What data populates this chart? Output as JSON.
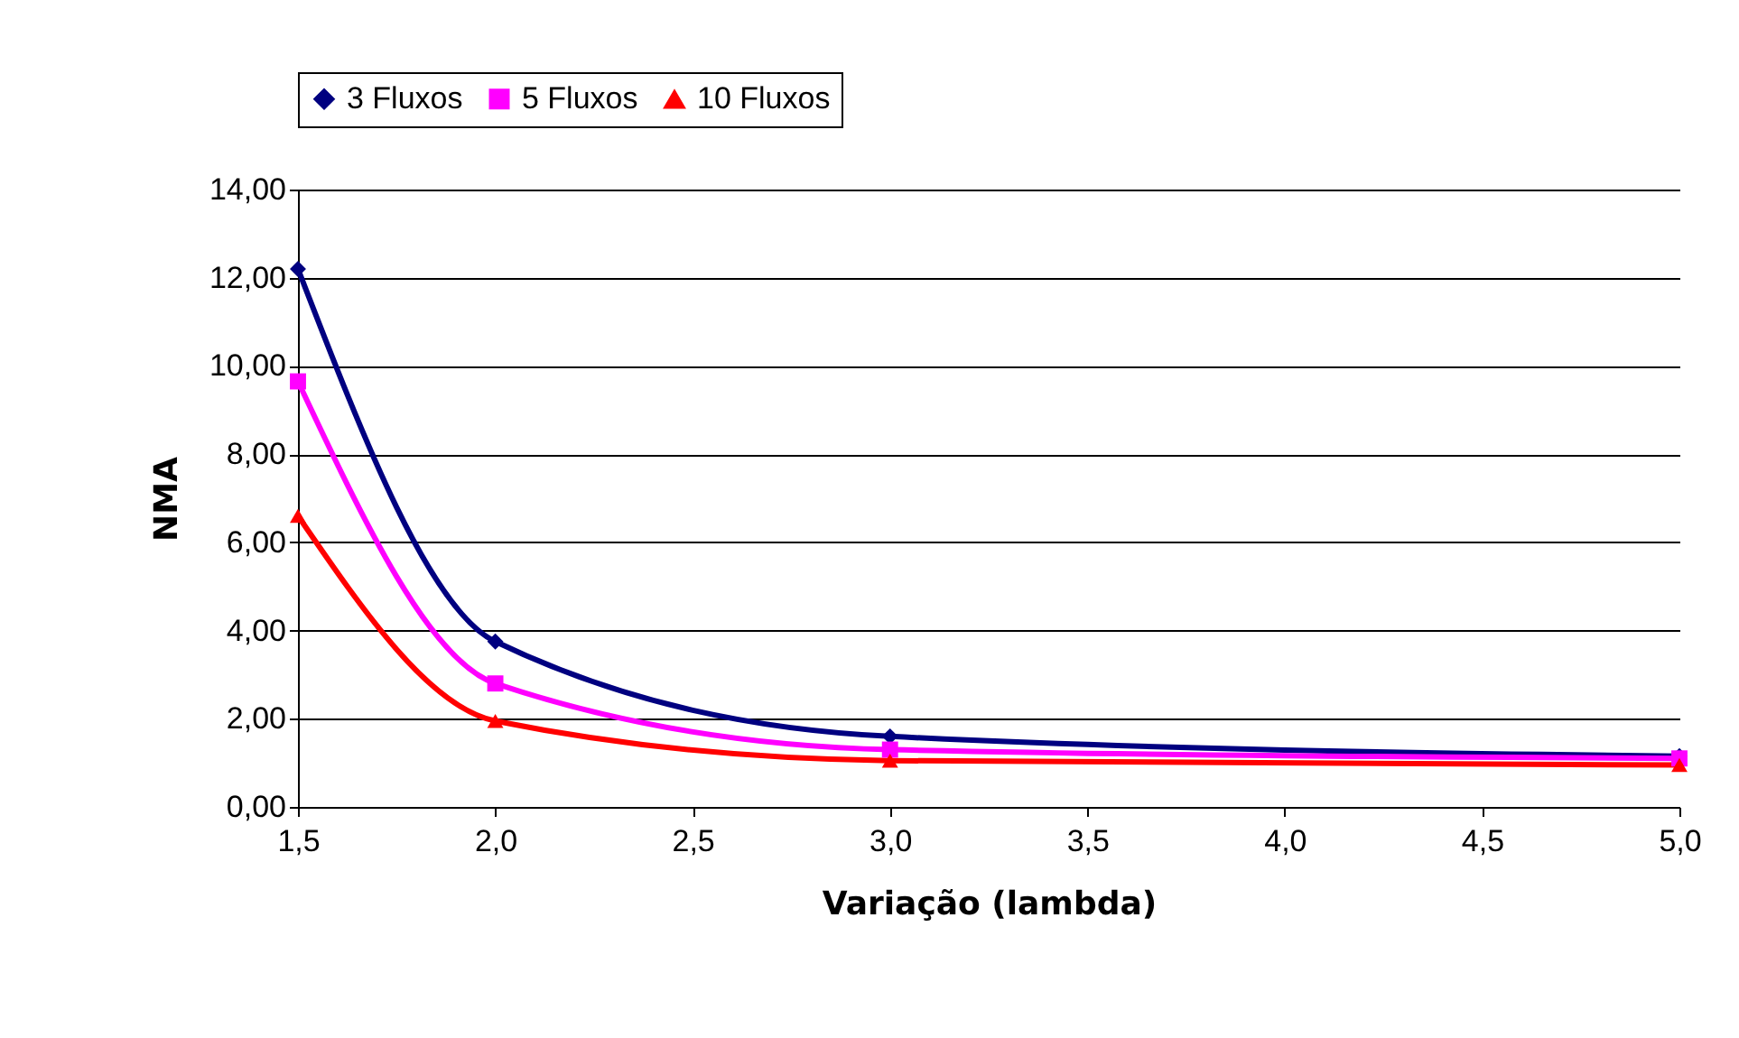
{
  "chart_data": {
    "type": "line",
    "xlabel": "Variação (lambda)",
    "ylabel": "NMA",
    "x": [
      1.5,
      2.0,
      3.0,
      5.0
    ],
    "series": [
      {
        "name": "3 Fluxos",
        "color": "#000080",
        "marker": "diamond",
        "values": [
          12.2,
          3.75,
          1.6,
          1.15
        ]
      },
      {
        "name": "5 Fluxos",
        "color": "#ff00ff",
        "marker": "square",
        "values": [
          9.65,
          2.8,
          1.3,
          1.1
        ]
      },
      {
        "name": "10 Fluxos",
        "color": "#ff0000",
        "marker": "triangle",
        "values": [
          6.6,
          1.95,
          1.05,
          0.95
        ]
      }
    ],
    "xlim": [
      1.5,
      5.0
    ],
    "xticks": [
      {
        "value": 1.5,
        "label": "1,5"
      },
      {
        "value": 2.0,
        "label": "2,0"
      },
      {
        "value": 2.5,
        "label": "2,5"
      },
      {
        "value": 3.0,
        "label": "3,0"
      },
      {
        "value": 3.5,
        "label": "3,5"
      },
      {
        "value": 4.0,
        "label": "4,0"
      },
      {
        "value": 4.5,
        "label": "4,5"
      },
      {
        "value": 5.0,
        "label": "5,0"
      }
    ],
    "ylim": [
      0,
      14
    ],
    "yticks": [
      {
        "value": 0,
        "label": "0,00"
      },
      {
        "value": 2,
        "label": "2,00"
      },
      {
        "value": 4,
        "label": "4,00"
      },
      {
        "value": 6,
        "label": "6,00"
      },
      {
        "value": 8,
        "label": "8,00"
      },
      {
        "value": 10,
        "label": "10,00"
      },
      {
        "value": 12,
        "label": "12,00"
      },
      {
        "value": 14,
        "label": "14,00"
      }
    ],
    "grid": "y",
    "legend": "top",
    "line_style": "solid"
  }
}
